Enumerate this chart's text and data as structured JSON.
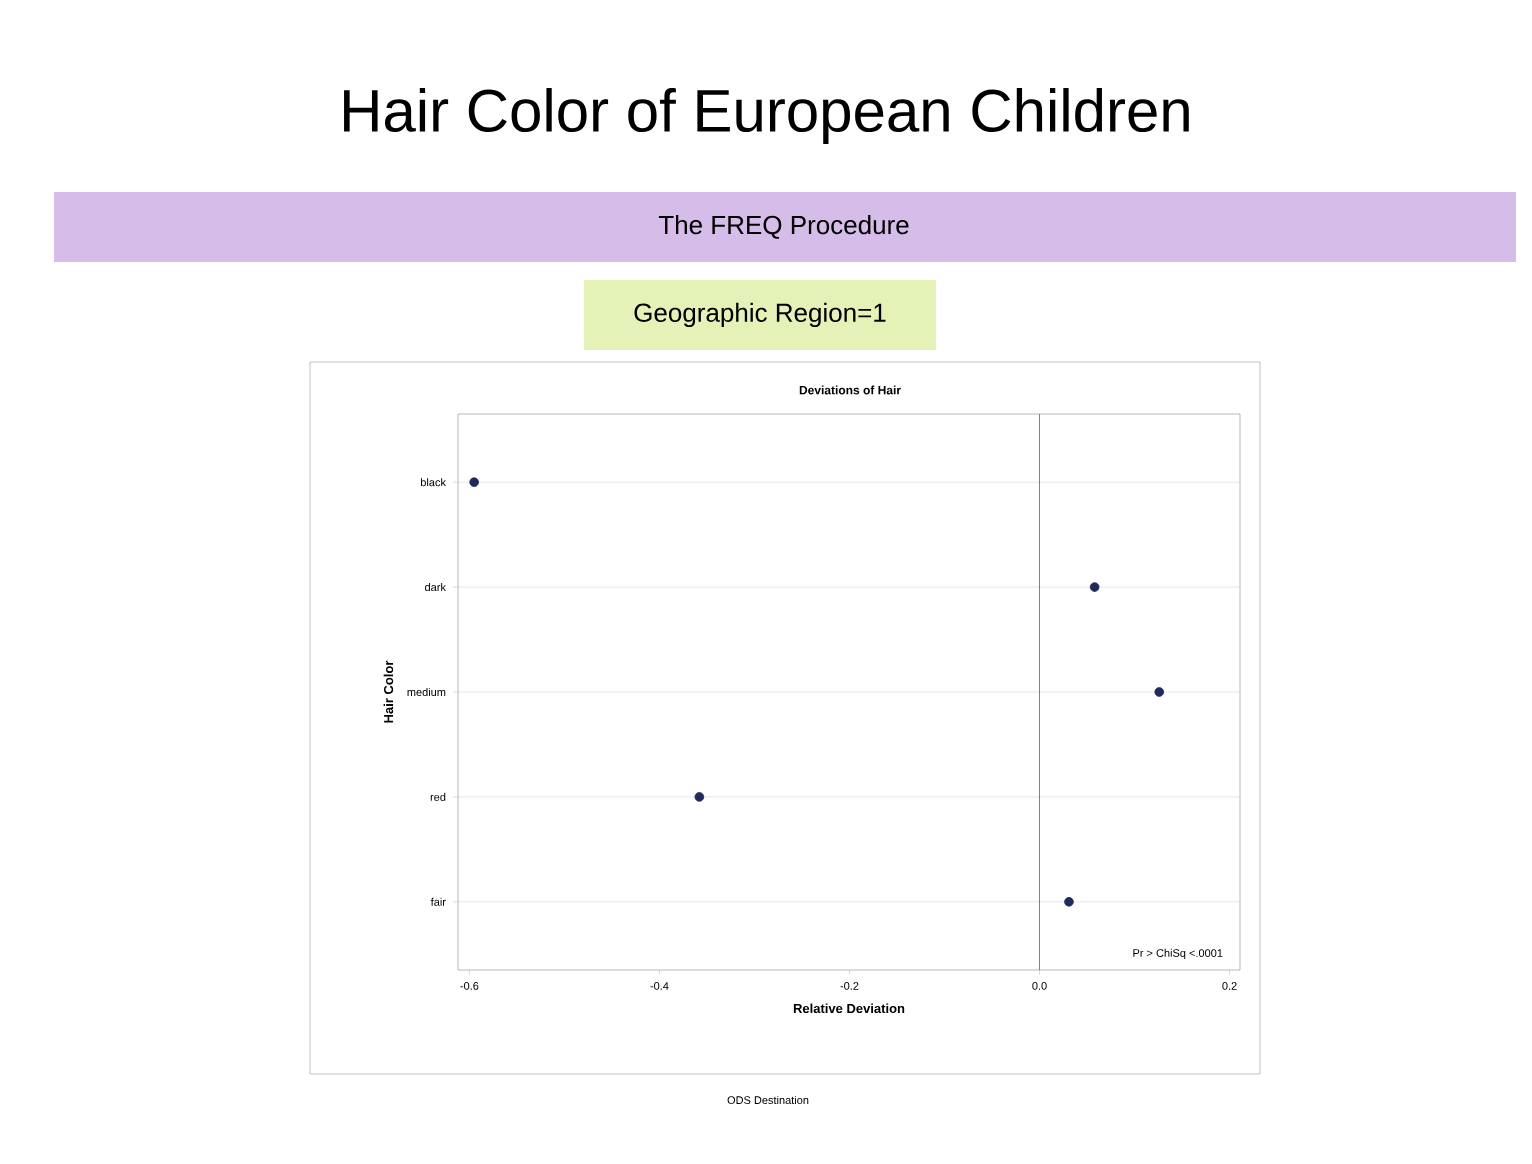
{
  "chart_data": {
    "type": "scatter",
    "orientation": "horizontal",
    "title": "Hair Color of European Children",
    "subtitle": "The FREQ Procedure",
    "xlabel": "Relative Deviation",
    "ylabel": "Hair Color",
    "annotations": [
      "Geographic Region=1",
      "Deviations of Hair",
      "Pr > ChiSq  <.0001",
      "ODS Destination"
    ],
    "categories": [
      "black",
      "dark",
      "medium",
      "red",
      "fair"
    ],
    "values": [
      -0.595,
      0.058,
      0.126,
      -0.358,
      0.031
    ],
    "color": "#1f2a5a",
    "xlim": [
      -0.612,
      0.211
    ],
    "xticks": [
      -0.6,
      -0.4,
      -0.2,
      {
        "value": 0,
        "label": "0.0"
      },
      0.2
    ],
    "ref_lines": [
      {
        "axis": "x",
        "value": 0,
        "color": "#606060"
      }
    ],
    "grid": "y",
    "marker": "circle"
  }
}
